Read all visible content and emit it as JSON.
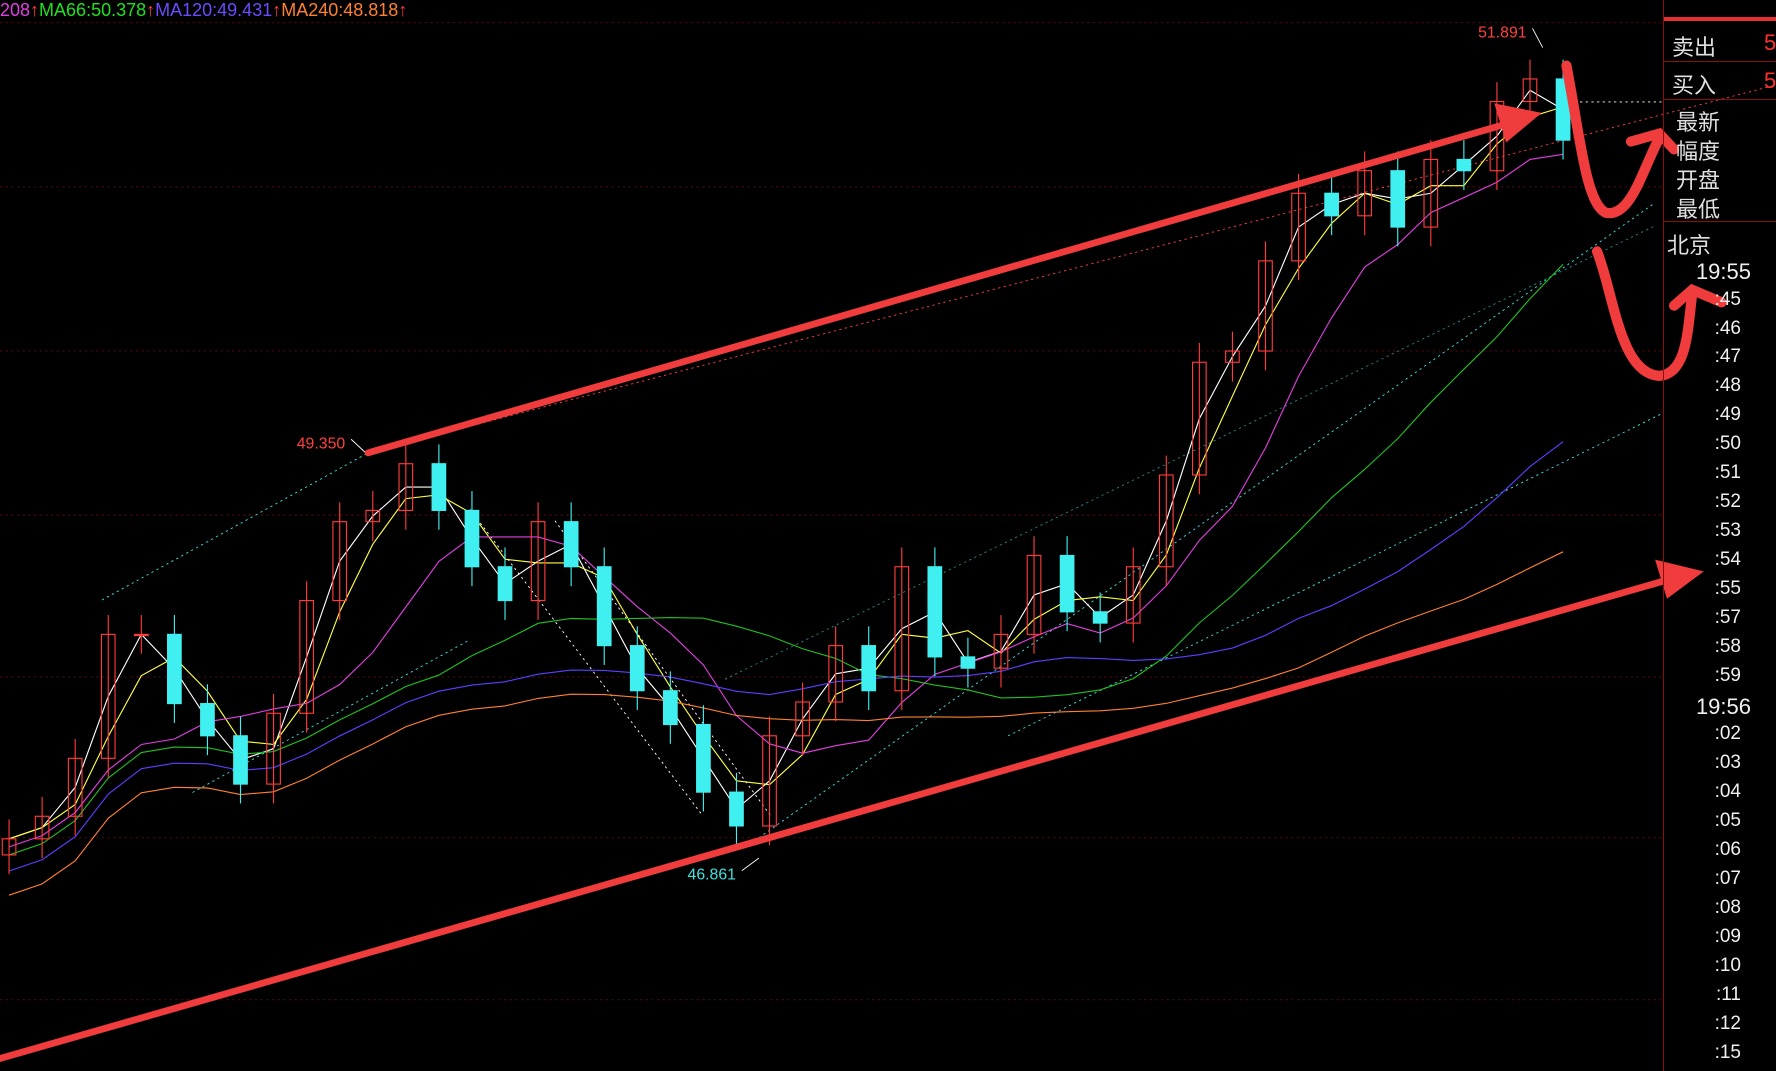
{
  "legend": [
    {
      "text": "208",
      "color": "#e040e0"
    },
    {
      "text": "MA66:50.378",
      "color": "#20e020"
    },
    {
      "text": "MA120:49.431",
      "color": "#6a4cff"
    },
    {
      "text": "MA240:48.818",
      "color": "#ff8030"
    }
  ],
  "legend_arrow": "↑",
  "chart_data": {
    "type": "candlestick",
    "closes": [
      46.96,
      47.1,
      47.46,
      48.23,
      48.23,
      47.8,
      47.6,
      47.3,
      47.74,
      48.44,
      48.93,
      49.0,
      49.29,
      49.0,
      48.65,
      48.44,
      48.93,
      48.65,
      48.16,
      47.88,
      47.67,
      47.25,
      47.04,
      47.6,
      47.81,
      48.16,
      47.88,
      48.65,
      48.09,
      48.02,
      48.23,
      48.72,
      48.37,
      48.3,
      48.65,
      49.22,
      49.92,
      49.99,
      50.55,
      50.97,
      50.83,
      51.11,
      50.76,
      51.18,
      51.11,
      51.54,
      51.68,
      51.3
    ],
    "ylim": [
      45.3,
      52.2
    ],
    "annotations": [
      {
        "text": "49.350",
        "value": 49.35,
        "color": "#ff4040"
      },
      {
        "text": "46.861",
        "value": 46.861,
        "color": "#40e0e0"
      },
      {
        "text": "51.891",
        "value": 51.891,
        "color": "#ff4040"
      }
    ],
    "colors": {
      "up": "#ff3b3b",
      "down": "#40f0f0",
      "ma5": "#ffffff",
      "ma10": "#ffff40",
      "ma20": "#e040e0",
      "ma66": "#20c020",
      "ma120": "#5a40ff",
      "ma240": "#ff8030"
    }
  },
  "panel": {
    "rows": [
      {
        "label": "卖出",
        "value": "5"
      },
      {
        "label": "买入",
        "value": "5"
      }
    ],
    "stats": [
      "最新",
      "幅度",
      "开盘",
      "最低"
    ],
    "city": "北京",
    "times": [
      "19:55",
      ":45",
      ":46",
      ":47",
      ":48",
      ":49",
      ":50",
      ":51",
      ":52",
      ":53",
      ":54",
      ":55",
      ":57",
      ":58",
      ":59",
      "19:56",
      ":02",
      ":03",
      ":04",
      ":05",
      ":06",
      ":07",
      ":08",
      ":09",
      ":10",
      ":11",
      ":12",
      ":15"
    ]
  }
}
